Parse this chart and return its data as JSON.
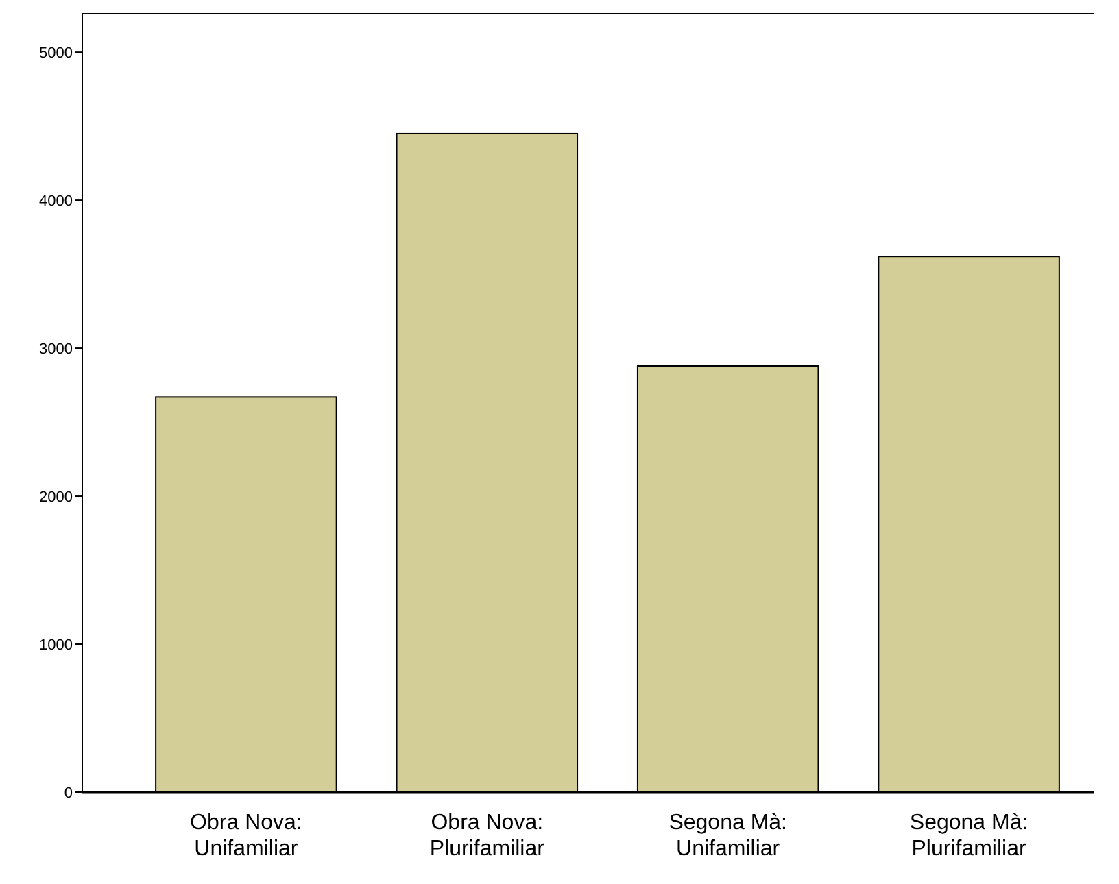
{
  "chart_data": {
    "type": "bar",
    "categories": [
      "Obra Nova:\nUnifamiliar",
      "Obra Nova:\nPlurifamiliar",
      "Segona Mà:\nUnifamiliar",
      "Segona Mà:\nPlurifamiliar"
    ],
    "values": [
      2670,
      4450,
      2880,
      3620
    ],
    "color": "#d3ce98",
    "ylim": [
      0,
      5260
    ],
    "yticks": [
      0,
      1000,
      2000,
      3000,
      4000,
      5000
    ],
    "grid": false
  }
}
